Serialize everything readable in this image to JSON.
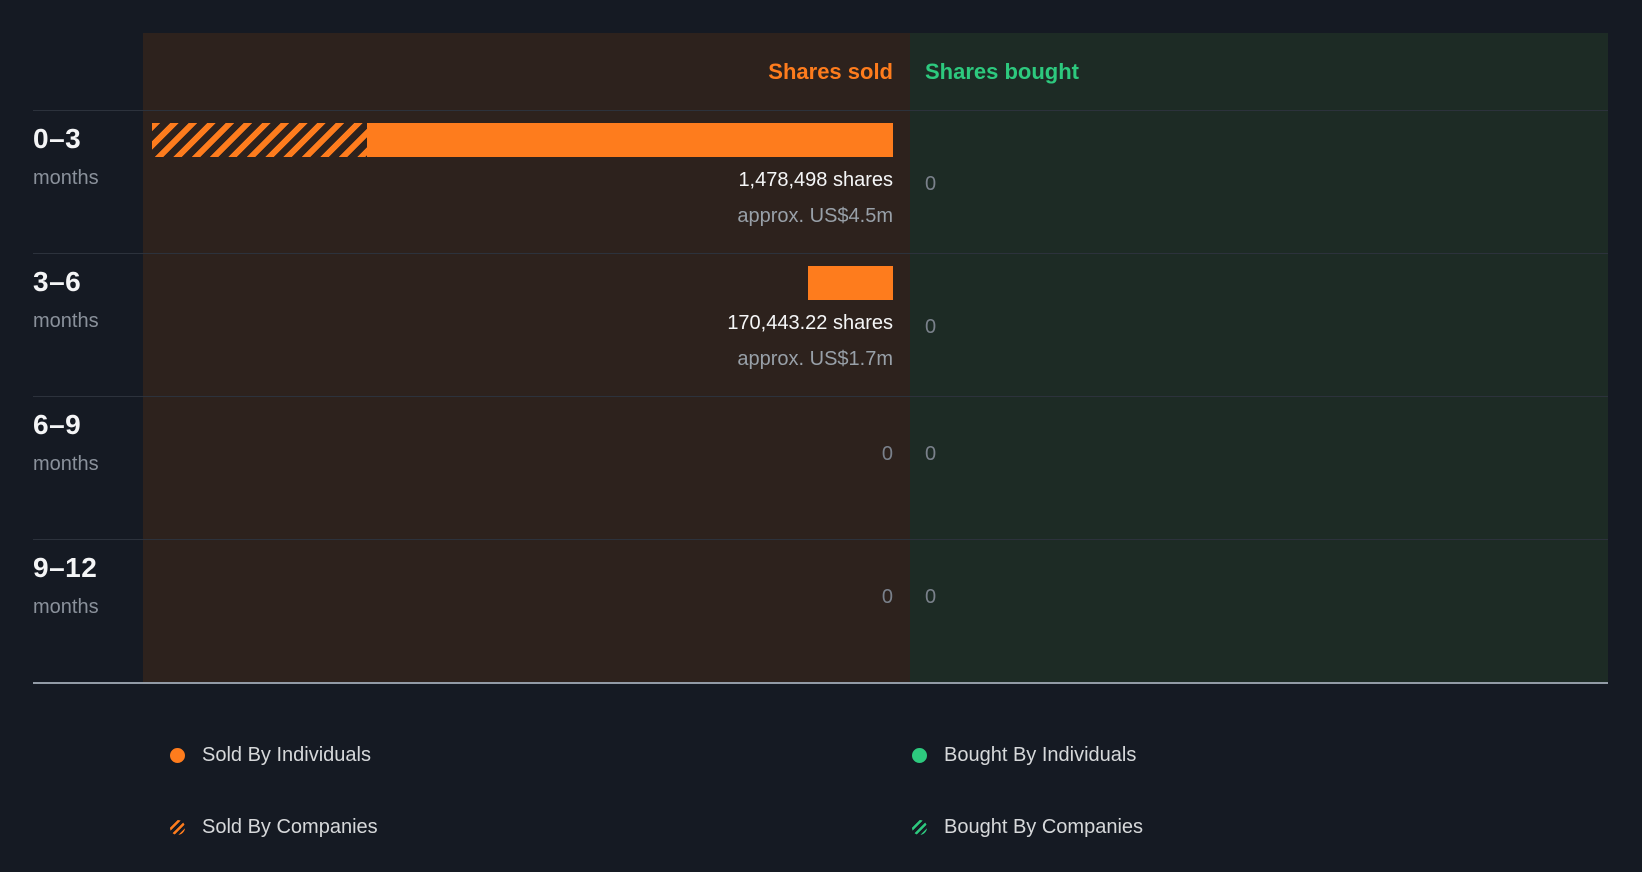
{
  "header": {
    "sold_column_label": "Shares sold",
    "bought_column_label": "Shares bought"
  },
  "rows": [
    {
      "period": "0–3",
      "unit": "months",
      "sold": {
        "shares_label": "1,478,498 shares",
        "approx_label": "approx. US$4.5m"
      },
      "bought": {
        "value": "0"
      },
      "bar": {
        "width_pct": 100,
        "hatched_pct": 29
      }
    },
    {
      "period": "3–6",
      "unit": "months",
      "sold": {
        "shares_label": "170,443.22 shares",
        "approx_label": "approx. US$1.7m"
      },
      "bought": {
        "value": "0"
      },
      "bar": {
        "width_pct": 11.5,
        "hatched_pct": 0
      }
    },
    {
      "period": "6–9",
      "unit": "months",
      "sold": {
        "value": "0"
      },
      "bought": {
        "value": "0"
      },
      "bar": null
    },
    {
      "period": "9–12",
      "unit": "months",
      "sold": {
        "value": "0"
      },
      "bought": {
        "value": "0"
      },
      "bar": null
    }
  ],
  "legend": {
    "items": [
      {
        "label": "Sold By Individuals",
        "swatch": "solid-orange"
      },
      {
        "label": "Sold By Companies",
        "swatch": "hatch-orange"
      },
      {
        "label": "Bought By Individuals",
        "swatch": "solid-green"
      },
      {
        "label": "Bought By Companies",
        "swatch": "hatch-green"
      }
    ]
  },
  "colors": {
    "page_bg": "#151a23",
    "sold_panel_bg": "#2d221d",
    "bought_panel_bg": "#1d2b25",
    "sold_accent": "#fe7c1d",
    "bought_accent": "#2dc97e"
  },
  "chart_data": {
    "type": "bar",
    "variant": "diverging-horizontal",
    "title": "",
    "categories": [
      "0–3 months",
      "3–6 months",
      "6–9 months",
      "9–12 months"
    ],
    "series": [
      {
        "name": "Shares sold",
        "color": "#fe7c1d",
        "values_shares": [
          1478498,
          170443.22,
          0,
          0
        ],
        "value_labels": [
          "1,478,498 shares",
          "170,443.22 shares",
          "0",
          "0"
        ],
        "approx_usd_labels": [
          "approx. US$4.5m",
          "approx. US$1.7m",
          null,
          null
        ],
        "segment_fraction_estimate": [
          {
            "sold_by_companies": 0.29,
            "sold_by_individuals": 0.71
          },
          {
            "sold_by_companies": 0,
            "sold_by_individuals": 1
          },
          null,
          null
        ]
      },
      {
        "name": "Shares bought",
        "color": "#2dc97e",
        "values_shares": [
          0,
          0,
          0,
          0
        ],
        "value_labels": [
          "0",
          "0",
          "0",
          "0"
        ]
      }
    ],
    "legend_position": "bottom",
    "legend_entries": [
      "Sold By Individuals",
      "Sold By Companies",
      "Bought By Individuals",
      "Bought By Companies"
    ],
    "axes": {
      "x": "shares (sold extends left, bought extends right from center divider)",
      "y": "recency buckets in months"
    },
    "grid": "horizontal row separators only"
  }
}
